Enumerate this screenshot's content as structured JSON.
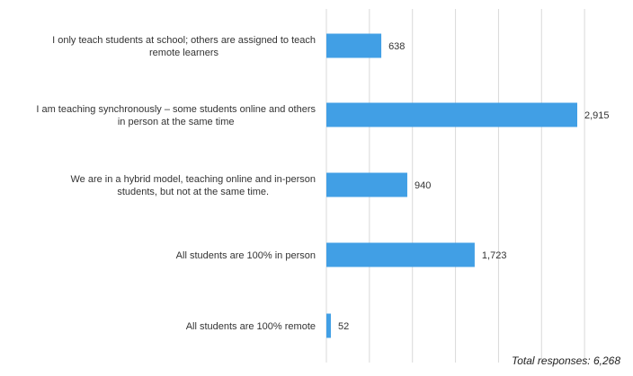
{
  "chart_data": {
    "type": "bar",
    "orientation": "horizontal",
    "categories": [
      [
        "I only teach students at school; others are assigned to teach",
        "remote learners"
      ],
      [
        "I am teaching synchronously – some students online and others",
        "in person at the same time"
      ],
      [
        "We are in a hybrid model, teaching online and in-person",
        "students, but not at the same time."
      ],
      [
        "All students are 100% in person"
      ],
      [
        "All students are 100% remote"
      ]
    ],
    "values": [
      638,
      2915,
      940,
      1723,
      52
    ],
    "value_labels": [
      "638",
      "2,915",
      "940",
      "1,723",
      "52"
    ],
    "xlim": [
      0,
      3000
    ],
    "grid": true,
    "legend": "none",
    "title": "",
    "xlabel": "",
    "ylabel": ""
  },
  "colors": {
    "bar": "#419FE5",
    "grid": "#D9D9D9",
    "text": "#333333"
  },
  "footnote": "Total responses: 6,268"
}
